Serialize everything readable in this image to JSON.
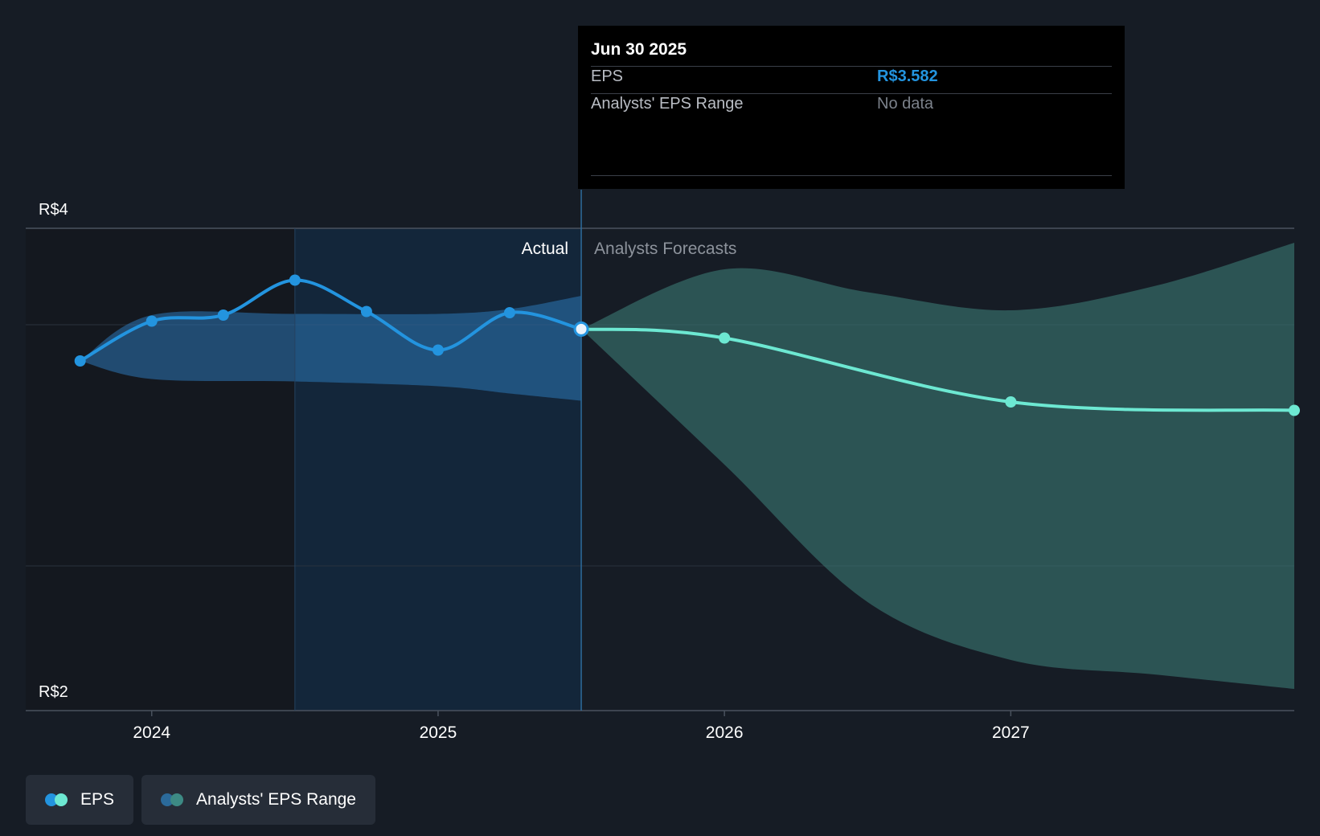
{
  "chart_data": {
    "type": "line",
    "title": "",
    "xlabel": "",
    "ylabel": "",
    "y_axis": {
      "top_label": "R$4",
      "bottom_label": "R$2",
      "ylim": [
        2.0,
        4.0
      ]
    },
    "x_ticks": [
      {
        "label": "2024",
        "x": 2024.0
      },
      {
        "label": "2025",
        "x": 2025.0
      },
      {
        "label": "2026",
        "x": 2026.0
      },
      {
        "label": "2027",
        "x": 2027.0
      }
    ],
    "x_range": [
      2023.56,
      2027.99
    ],
    "highlight_start": 2024.5,
    "divider_x": 2025.5,
    "region_labels": {
      "actual": "Actual",
      "forecast": "Analysts Forecasts"
    },
    "series": [
      {
        "name": "EPS (actual)",
        "color": "#2394df",
        "points": [
          {
            "x": 2023.75,
            "y": 3.45
          },
          {
            "x": 2024.0,
            "y": 3.615
          },
          {
            "x": 2024.25,
            "y": 3.64
          },
          {
            "x": 2024.5,
            "y": 3.785
          },
          {
            "x": 2024.75,
            "y": 3.655
          },
          {
            "x": 2025.0,
            "y": 3.495
          },
          {
            "x": 2025.25,
            "y": 3.65
          },
          {
            "x": 2025.5,
            "y": 3.582
          }
        ]
      },
      {
        "name": "EPS (forecast)",
        "color": "#6de8d2",
        "points": [
          {
            "x": 2025.5,
            "y": 3.582
          },
          {
            "x": 2026.0,
            "y": 3.545
          },
          {
            "x": 2027.0,
            "y": 3.28
          },
          {
            "x": 2027.99,
            "y": 3.245
          }
        ]
      }
    ],
    "actual_range_band": {
      "upper": [
        {
          "x": 2023.75,
          "y": 3.45
        },
        {
          "x": 2024.0,
          "y": 3.64
        },
        {
          "x": 2024.5,
          "y": 3.645
        },
        {
          "x": 2025.0,
          "y": 3.645
        },
        {
          "x": 2025.25,
          "y": 3.665
        },
        {
          "x": 2025.5,
          "y": 3.72
        }
      ],
      "lower": [
        {
          "x": 2023.75,
          "y": 3.45
        },
        {
          "x": 2024.0,
          "y": 3.375
        },
        {
          "x": 2024.5,
          "y": 3.365
        },
        {
          "x": 2025.0,
          "y": 3.345
        },
        {
          "x": 2025.25,
          "y": 3.315
        },
        {
          "x": 2025.5,
          "y": 3.285
        }
      ]
    },
    "forecast_range_band": {
      "upper": [
        {
          "x": 2025.5,
          "y": 3.582
        },
        {
          "x": 2026.0,
          "y": 3.83
        },
        {
          "x": 2026.5,
          "y": 3.735
        },
        {
          "x": 2027.0,
          "y": 3.66
        },
        {
          "x": 2027.5,
          "y": 3.76
        },
        {
          "x": 2027.99,
          "y": 3.94
        }
      ],
      "lower": [
        {
          "x": 2025.5,
          "y": 3.582
        },
        {
          "x": 2026.0,
          "y": 3.02
        },
        {
          "x": 2026.5,
          "y": 2.45
        },
        {
          "x": 2027.0,
          "y": 2.21
        },
        {
          "x": 2027.5,
          "y": 2.15
        },
        {
          "x": 2027.99,
          "y": 2.09
        }
      ]
    },
    "hover_point": {
      "x": 2025.5,
      "y": 3.582
    }
  },
  "tooltip": {
    "date": "Jun 30 2025",
    "rows": [
      {
        "label": "EPS",
        "value": "R$3.582",
        "value_color": "#2394df"
      },
      {
        "label": "Analysts' EPS Range",
        "value": "No data",
        "value_color": "#7c828b"
      }
    ]
  },
  "legend": [
    {
      "label": "EPS",
      "colors": [
        "#2394df",
        "#6de8d2"
      ]
    },
    {
      "label": "Analysts' EPS Range",
      "colors": [
        "#2b6a9a",
        "#3d8a84"
      ]
    }
  ]
}
